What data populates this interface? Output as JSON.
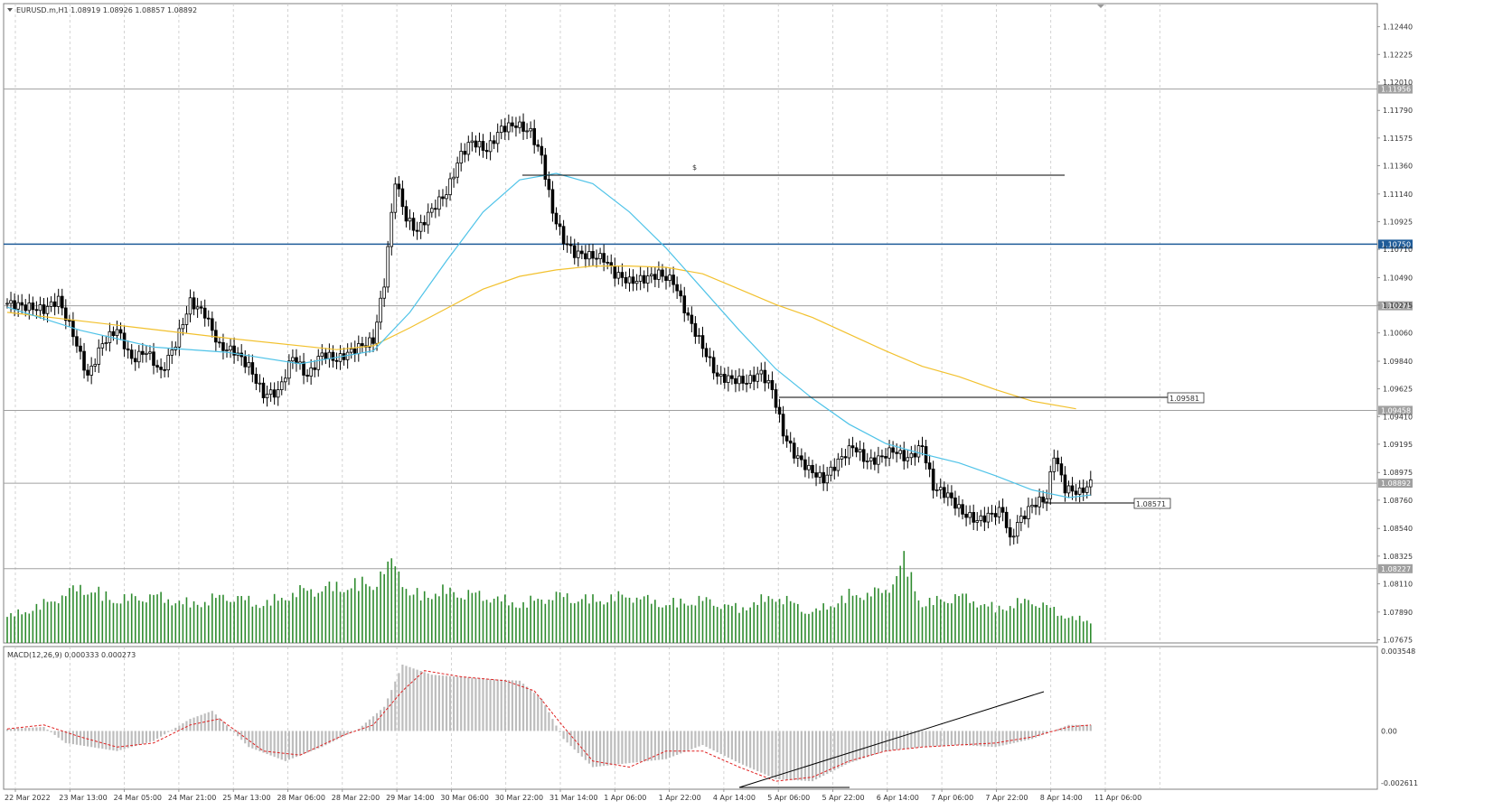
{
  "header": {
    "symbol_line": "EURUSD.m,H1  1.08919 1.08926 1.08857 1.08892"
  },
  "macd": {
    "label": "MACD(12,26,9) 0.000333 0.000273",
    "axis_labels": [
      "0.003548",
      "0.00",
      "-0.002611"
    ]
  },
  "price_axis": {
    "labels": [
      "1.12440",
      "1.12225",
      "1.12010",
      "1.11790",
      "1.11575",
      "1.11360",
      "1.11140",
      "1.10925",
      "1.10710",
      "1.10490",
      "1.10275",
      "1.10060",
      "1.09840",
      "1.09625",
      "1.09410",
      "1.09195",
      "1.08975",
      "1.08760",
      "1.08540",
      "1.08325",
      "1.08110",
      "1.07890",
      "1.07675"
    ]
  },
  "horizontal_levels": [
    {
      "value": "1.11956",
      "color": "#a0a0a0"
    },
    {
      "value": "1.10750",
      "color": "#1f5c99"
    },
    {
      "value": "1.10271",
      "color": "#a0a0a0"
    },
    {
      "value": "1.09458",
      "color": "#a0a0a0"
    },
    {
      "value": "1.08892",
      "color": "#a0a0a0"
    },
    {
      "value": "1.08227",
      "color": "#a0a0a0"
    }
  ],
  "annotations": {
    "dollar_label": "$",
    "price_label_1": "1.09581",
    "price_label_2": "1.08571"
  },
  "time_axis": {
    "labels": [
      "22 Mar 2022",
      "23 Mar 13:00",
      "24 Mar 05:00",
      "24 Mar 21:00",
      "25 Mar 13:00",
      "28 Mar 06:00",
      "28 Mar 22:00",
      "29 Mar 14:00",
      "30 Mar 06:00",
      "30 Mar 22:00",
      "31 Mar 14:00",
      "1 Apr 06:00",
      "1 Apr 22:00",
      "4 Apr 14:00",
      "5 Apr 06:00",
      "5 Apr 22:00",
      "6 Apr 14:00",
      "7 Apr 06:00",
      "7 Apr 22:00",
      "8 Apr 14:00",
      "11 Apr 06:00"
    ]
  },
  "colors": {
    "ma_fast": "#4fc3e8",
    "ma_slow": "#f2c12e",
    "volume": "#2e8b2e",
    "macd_hist": "#bdbdbd",
    "macd_signal": "#e02020",
    "candles": "#000000",
    "grid": "#c8c8c8"
  },
  "chart_data": {
    "type": "candlestick",
    "symbol": "EURUSD.m",
    "timeframe": "H1",
    "ohlc_current": {
      "open": 1.08919,
      "high": 1.08926,
      "low": 1.08857,
      "close": 1.08892
    },
    "ylim": [
      1.0765,
      1.1262
    ],
    "close_path": [
      [
        0,
        1.1029
      ],
      [
        10,
        1.1024
      ],
      [
        14,
        1.1032
      ],
      [
        18,
        1.1005
      ],
      [
        22,
        1.0972
      ],
      [
        26,
        1.0998
      ],
      [
        30,
        1.1009
      ],
      [
        34,
        1.0985
      ],
      [
        38,
        1.0992
      ],
      [
        42,
        1.0975
      ],
      [
        46,
        1.0998
      ],
      [
        50,
        1.103
      ],
      [
        54,
        1.1021
      ],
      [
        58,
        1.0995
      ],
      [
        62,
        1.0992
      ],
      [
        66,
        1.098
      ],
      [
        70,
        1.0958
      ],
      [
        74,
        1.096
      ],
      [
        78,
        1.0988
      ],
      [
        82,
        1.0972
      ],
      [
        86,
        1.099
      ],
      [
        90,
        1.0985
      ],
      [
        96,
        1.0995
      ],
      [
        100,
        1.1
      ],
      [
        103,
        1.1045
      ],
      [
        106,
        1.1125
      ],
      [
        109,
        1.1095
      ],
      [
        112,
        1.1085
      ],
      [
        116,
        1.1102
      ],
      [
        120,
        1.1115
      ],
      [
        124,
        1.1145
      ],
      [
        127,
        1.1155
      ],
      [
        131,
        1.1148
      ],
      [
        135,
        1.1165
      ],
      [
        139,
        1.1168
      ],
      [
        143,
        1.1162
      ],
      [
        146,
        1.1143
      ],
      [
        149,
        1.11
      ],
      [
        152,
        1.1078
      ],
      [
        155,
        1.1068
      ],
      [
        159,
        1.1066
      ],
      [
        163,
        1.1064
      ],
      [
        166,
        1.1052
      ],
      [
        170,
        1.1046
      ],
      [
        174,
        1.1048
      ],
      [
        178,
        1.1052
      ],
      [
        182,
        1.1046
      ],
      [
        186,
        1.1018
      ],
      [
        190,
        1.0995
      ],
      [
        194,
        1.0972
      ],
      [
        198,
        1.097
      ],
      [
        202,
        1.0968
      ],
      [
        206,
        1.0975
      ],
      [
        209,
        1.0962
      ],
      [
        212,
        1.0928
      ],
      [
        215,
        1.0912
      ],
      [
        219,
        1.09
      ],
      [
        223,
        1.0892
      ],
      [
        227,
        1.0906
      ],
      [
        231,
        1.0918
      ],
      [
        235,
        1.0906
      ],
      [
        238,
        1.0908
      ],
      [
        242,
        1.0915
      ],
      [
        246,
        1.0908
      ],
      [
        250,
        1.0918
      ],
      [
        253,
        1.0886
      ],
      [
        257,
        1.088
      ],
      [
        261,
        1.0866
      ],
      [
        265,
        1.086
      ],
      [
        269,
        1.0865
      ],
      [
        272,
        1.0868
      ],
      [
        274,
        1.0844
      ],
      [
        276,
        1.0858
      ],
      [
        280,
        1.0872
      ],
      [
        284,
        1.0878
      ],
      [
        286,
        1.0912
      ],
      [
        289,
        1.0885
      ],
      [
        293,
        1.0882
      ],
      [
        296,
        1.0889
      ]
    ],
    "ma_fast_path": [
      [
        0,
        1.1026
      ],
      [
        20,
        1.1008
      ],
      [
        40,
        1.0995
      ],
      [
        60,
        1.0991
      ],
      [
        80,
        1.0982
      ],
      [
        100,
        1.0992
      ],
      [
        110,
        1.1022
      ],
      [
        120,
        1.1062
      ],
      [
        130,
        1.11
      ],
      [
        140,
        1.1125
      ],
      [
        150,
        1.113
      ],
      [
        160,
        1.1122
      ],
      [
        170,
        1.11
      ],
      [
        180,
        1.1072
      ],
      [
        190,
        1.104
      ],
      [
        200,
        1.1008
      ],
      [
        210,
        1.0978
      ],
      [
        220,
        1.0955
      ],
      [
        230,
        1.0935
      ],
      [
        240,
        1.092
      ],
      [
        250,
        1.0912
      ],
      [
        260,
        1.0905
      ],
      [
        270,
        1.0895
      ],
      [
        280,
        1.0884
      ],
      [
        290,
        1.0878
      ],
      [
        296,
        1.088
      ]
    ],
    "ma_slow_path": [
      [
        0,
        1.1022
      ],
      [
        30,
        1.1012
      ],
      [
        60,
        1.1002
      ],
      [
        90,
        1.0993
      ],
      [
        100,
        1.0996
      ],
      [
        110,
        1.101
      ],
      [
        120,
        1.1025
      ],
      [
        130,
        1.104
      ],
      [
        140,
        1.105
      ],
      [
        150,
        1.1055
      ],
      [
        160,
        1.1058
      ],
      [
        170,
        1.1058
      ],
      [
        180,
        1.1057
      ],
      [
        190,
        1.1052
      ],
      [
        200,
        1.104
      ],
      [
        210,
        1.1028
      ],
      [
        220,
        1.1018
      ],
      [
        230,
        1.1005
      ],
      [
        240,
        1.0992
      ],
      [
        250,
        1.098
      ],
      [
        260,
        1.0972
      ],
      [
        270,
        1.0962
      ],
      [
        280,
        1.0953
      ],
      [
        292,
        1.0947
      ]
    ],
    "volume_path": [
      [
        0,
        0.3
      ],
      [
        10,
        0.45
      ],
      [
        20,
        0.65
      ],
      [
        30,
        0.5
      ],
      [
        40,
        0.55
      ],
      [
        50,
        0.45
      ],
      [
        60,
        0.55
      ],
      [
        70,
        0.45
      ],
      [
        80,
        0.6
      ],
      [
        100,
        0.7
      ],
      [
        106,
        0.95
      ],
      [
        110,
        0.55
      ],
      [
        120,
        0.6
      ],
      [
        130,
        0.55
      ],
      [
        140,
        0.45
      ],
      [
        150,
        0.55
      ],
      [
        160,
        0.5
      ],
      [
        170,
        0.55
      ],
      [
        180,
        0.45
      ],
      [
        190,
        0.5
      ],
      [
        200,
        0.4
      ],
      [
        210,
        0.55
      ],
      [
        220,
        0.35
      ],
      [
        230,
        0.55
      ],
      [
        240,
        0.6
      ],
      [
        245,
        0.95
      ],
      [
        250,
        0.45
      ],
      [
        260,
        0.55
      ],
      [
        270,
        0.4
      ],
      [
        280,
        0.5
      ],
      [
        290,
        0.3
      ],
      [
        296,
        0.25
      ]
    ],
    "macd_hist_path": [
      [
        0,
        0.0001
      ],
      [
        10,
        0.0002
      ],
      [
        16,
        -0.0006
      ],
      [
        30,
        -0.001
      ],
      [
        40,
        -0.0005
      ],
      [
        50,
        0.0006
      ],
      [
        56,
        0.001
      ],
      [
        66,
        -0.0008
      ],
      [
        76,
        -0.0015
      ],
      [
        86,
        -0.0008
      ],
      [
        96,
        0.0001
      ],
      [
        103,
        0.0012
      ],
      [
        108,
        0.0033
      ],
      [
        116,
        0.0028
      ],
      [
        130,
        0.0026
      ],
      [
        140,
        0.0025
      ],
      [
        146,
        0.0016
      ],
      [
        152,
        -0.0004
      ],
      [
        160,
        -0.0018
      ],
      [
        170,
        -0.0016
      ],
      [
        180,
        -0.0014
      ],
      [
        190,
        -0.0007
      ],
      [
        200,
        -0.0016
      ],
      [
        210,
        -0.0024
      ],
      [
        220,
        -0.0025
      ],
      [
        230,
        -0.0016
      ],
      [
        240,
        -0.001
      ],
      [
        250,
        -0.0008
      ],
      [
        260,
        -0.0007
      ],
      [
        270,
        -0.0008
      ],
      [
        280,
        -0.0004
      ],
      [
        290,
        0.0003
      ],
      [
        296,
        0.0003
      ]
    ],
    "macd_signal_path": [
      [
        0,
        0.0001
      ],
      [
        10,
        0.0003
      ],
      [
        20,
        -0.0003
      ],
      [
        30,
        -0.0008
      ],
      [
        40,
        -0.0006
      ],
      [
        50,
        0.0003
      ],
      [
        58,
        0.0006
      ],
      [
        70,
        -0.001
      ],
      [
        80,
        -0.0012
      ],
      [
        92,
        -0.0002
      ],
      [
        100,
        0.0003
      ],
      [
        108,
        0.002
      ],
      [
        114,
        0.003
      ],
      [
        124,
        0.0027
      ],
      [
        136,
        0.0025
      ],
      [
        144,
        0.002
      ],
      [
        152,
        0.0002
      ],
      [
        160,
        -0.0015
      ],
      [
        170,
        -0.0018
      ],
      [
        180,
        -0.001
      ],
      [
        190,
        -0.001
      ],
      [
        200,
        -0.0018
      ],
      [
        210,
        -0.0025
      ],
      [
        220,
        -0.0023
      ],
      [
        230,
        -0.0015
      ],
      [
        240,
        -0.001
      ],
      [
        250,
        -0.0008
      ],
      [
        260,
        -0.0007
      ],
      [
        270,
        -0.0006
      ],
      [
        280,
        -0.0003
      ],
      [
        290,
        0.0002
      ],
      [
        296,
        0.0003
      ]
    ]
  }
}
